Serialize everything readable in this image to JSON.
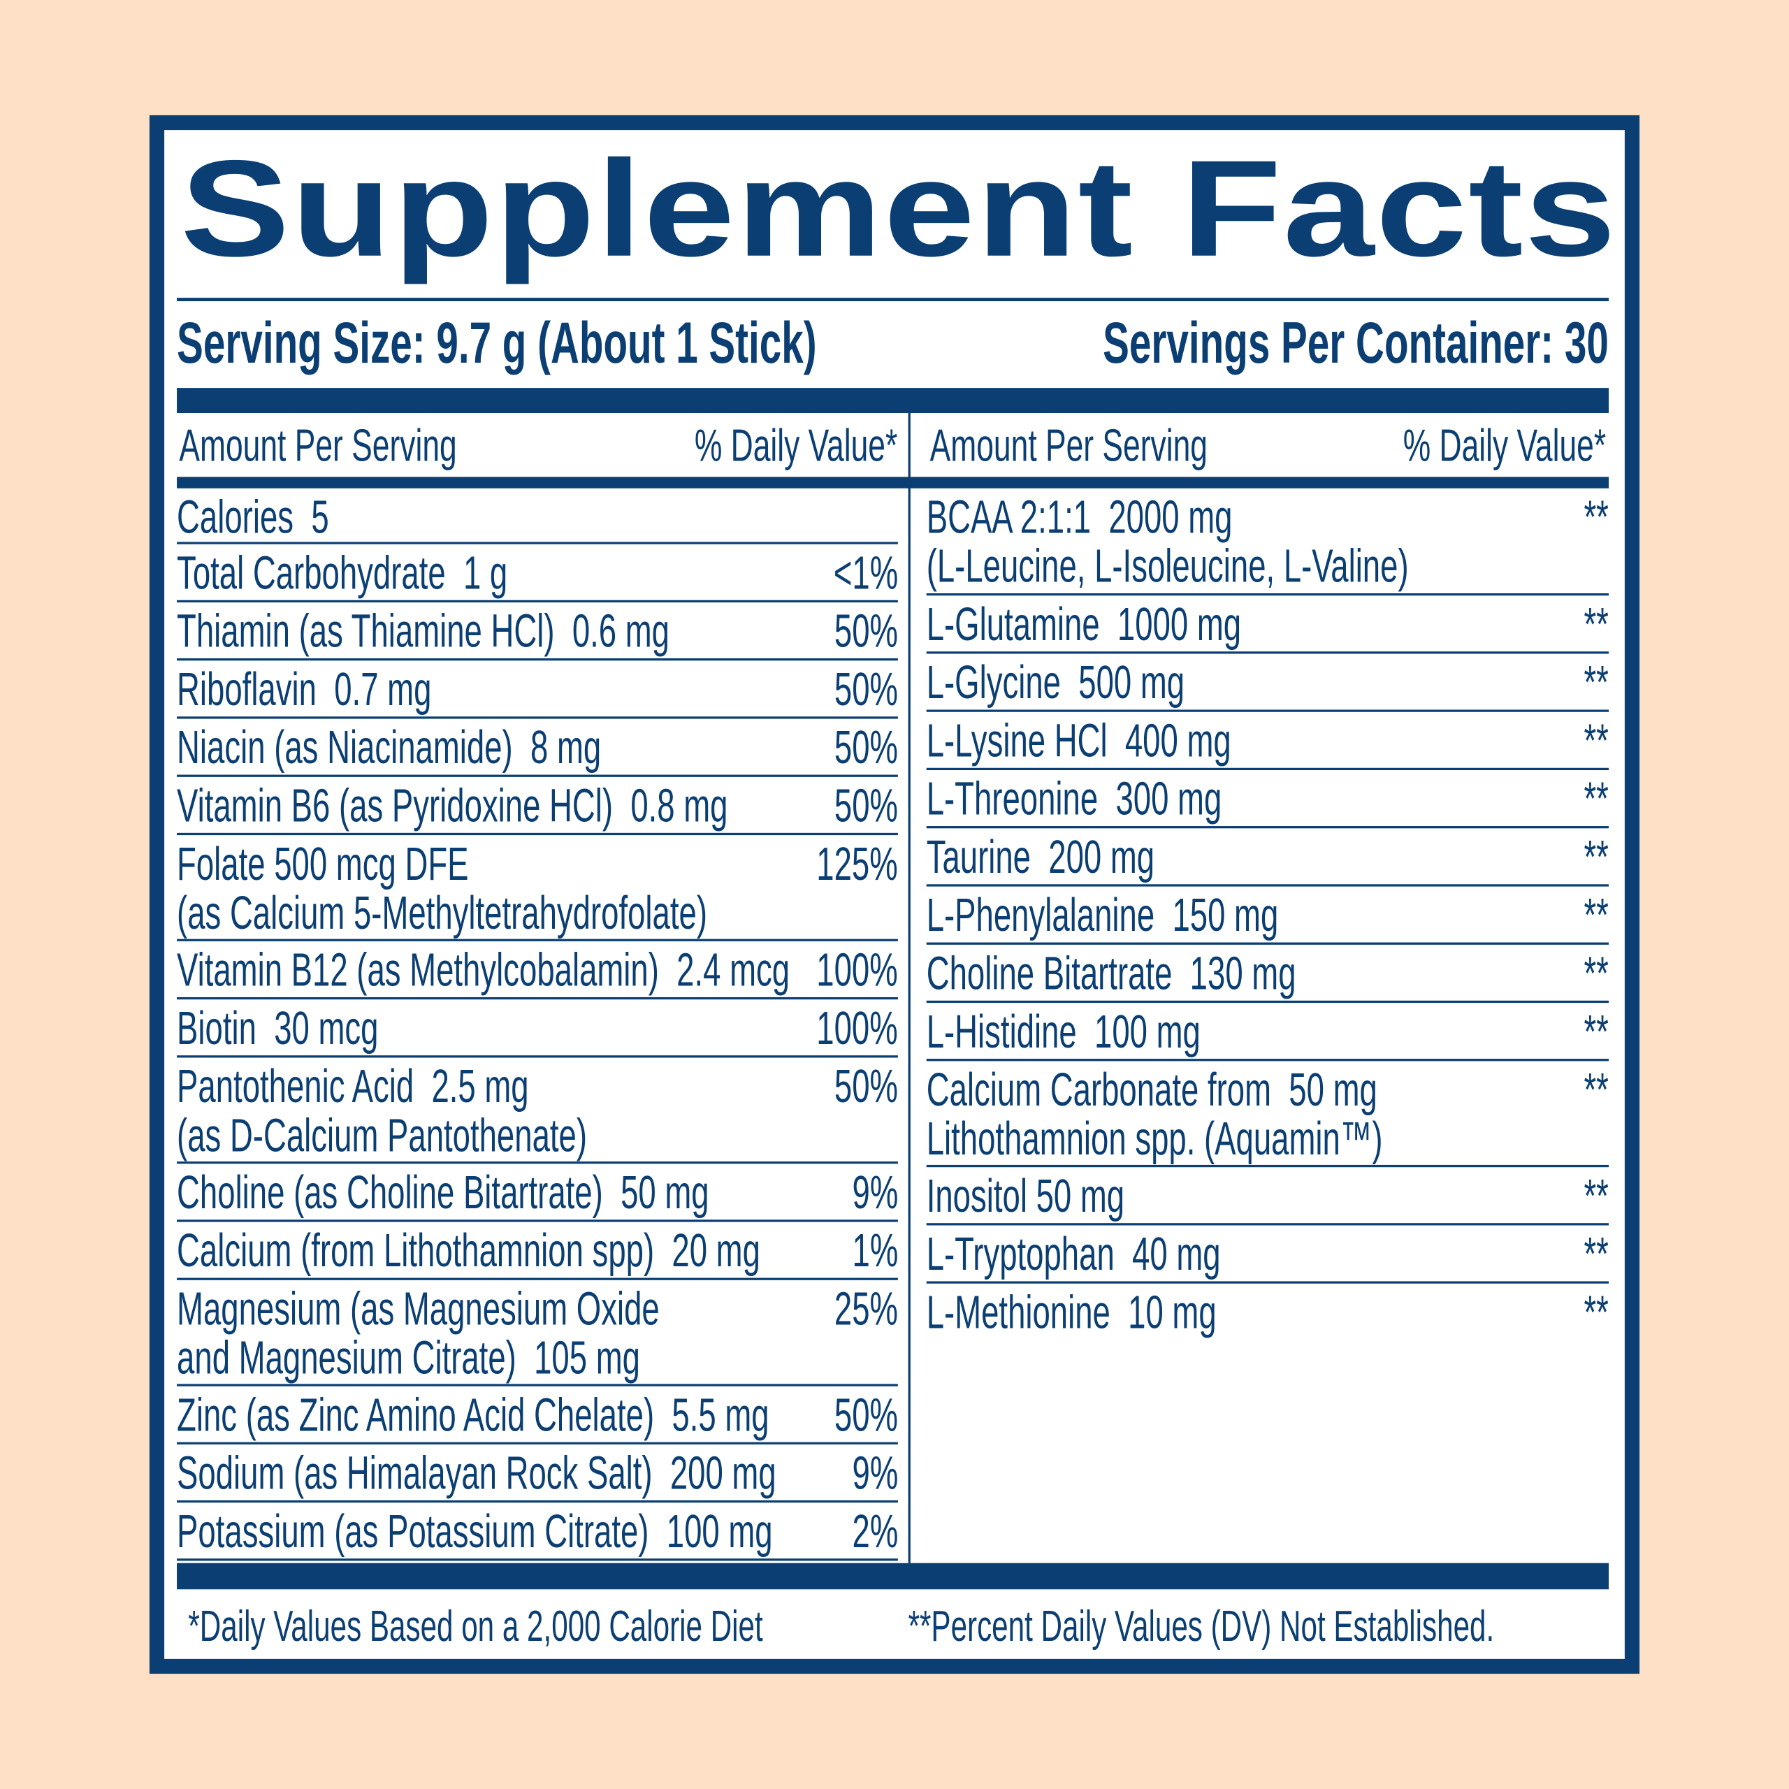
{
  "colors": {
    "navy": "#0b3f73",
    "background": "#fde0c5",
    "panel": "#ffffff"
  },
  "title": "Supplement Facts",
  "serving_size": "Serving Size: 9.7 g (About 1 Stick)",
  "servings_per_container": "Servings Per Container: 30",
  "header": {
    "amount": "Amount Per Serving",
    "daily_value": "% Daily Value*"
  },
  "left_rows": [
    {
      "lines": [
        "Calories  5"
      ],
      "dv": ""
    },
    {
      "lines": [
        "Total Carbohydrate  1 g"
      ],
      "dv": "<1%"
    },
    {
      "lines": [
        "Thiamin (as Thiamine HCl)  0.6 mg"
      ],
      "dv": "50%"
    },
    {
      "lines": [
        "Riboflavin  0.7 mg"
      ],
      "dv": "50%"
    },
    {
      "lines": [
        "Niacin (as Niacinamide)  8 mg"
      ],
      "dv": "50%"
    },
    {
      "lines": [
        "Vitamin B6 (as Pyridoxine HCl)  0.8 mg"
      ],
      "dv": "50%"
    },
    {
      "lines": [
        "Folate 500 mcg DFE",
        "(as Calcium 5-Methyltetrahydrofolate)"
      ],
      "dv": "125%"
    },
    {
      "lines": [
        "Vitamin B12 (as Methylcobalamin)  2.4 mcg"
      ],
      "dv": "100%"
    },
    {
      "lines": [
        "Biotin  30 mcg"
      ],
      "dv": "100%"
    },
    {
      "lines": [
        "Pantothenic Acid  2.5 mg",
        "(as D-Calcium Pantothenate)"
      ],
      "dv": "50%"
    },
    {
      "lines": [
        "Choline (as Choline Bitartrate)  50 mg"
      ],
      "dv": "9%"
    },
    {
      "lines": [
        "Calcium (from Lithothamnion spp)  20 mg"
      ],
      "dv": "1%"
    },
    {
      "lines": [
        "Magnesium (as Magnesium Oxide",
        "and Magnesium Citrate)  105 mg"
      ],
      "dv": "25%"
    },
    {
      "lines": [
        "Zinc (as Zinc Amino Acid Chelate)  5.5 mg"
      ],
      "dv": "50%"
    },
    {
      "lines": [
        "Sodium (as Himalayan Rock Salt)  200 mg"
      ],
      "dv": "9%"
    },
    {
      "lines": [
        "Potassium (as Potassium Citrate)  100 mg"
      ],
      "dv": "2%"
    }
  ],
  "right_rows": [
    {
      "lines": [
        "BCAA 2:1:1  2000 mg",
        "(L-Leucine, L-Isoleucine, L-Valine)"
      ],
      "dv": "**"
    },
    {
      "lines": [
        "L-Glutamine  1000 mg"
      ],
      "dv": "**"
    },
    {
      "lines": [
        "L-Glycine  500 mg"
      ],
      "dv": "**"
    },
    {
      "lines": [
        "L-Lysine HCl  400 mg"
      ],
      "dv": "**"
    },
    {
      "lines": [
        "L-Threonine  300 mg"
      ],
      "dv": "**"
    },
    {
      "lines": [
        "Taurine  200 mg"
      ],
      "dv": "**"
    },
    {
      "lines": [
        "L-Phenylalanine  150 mg"
      ],
      "dv": "**"
    },
    {
      "lines": [
        "Choline Bitartrate  130 mg"
      ],
      "dv": "**"
    },
    {
      "lines": [
        "L-Histidine  100 mg"
      ],
      "dv": "**"
    },
    {
      "lines": [
        "Calcium Carbonate from  50 mg",
        "Lithothamnion spp. (Aquamin™)"
      ],
      "dv": "**"
    },
    {
      "lines": [
        "Inositol 50 mg"
      ],
      "dv": "**"
    },
    {
      "lines": [
        "L-Tryptophan  40 mg"
      ],
      "dv": "**"
    },
    {
      "lines": [
        "L-Methionine  10 mg"
      ],
      "dv": "**"
    }
  ],
  "footer": {
    "left": "*Daily Values Based on a 2,000 Calorie Diet",
    "right": "**Percent Daily Values (DV) Not Established."
  }
}
